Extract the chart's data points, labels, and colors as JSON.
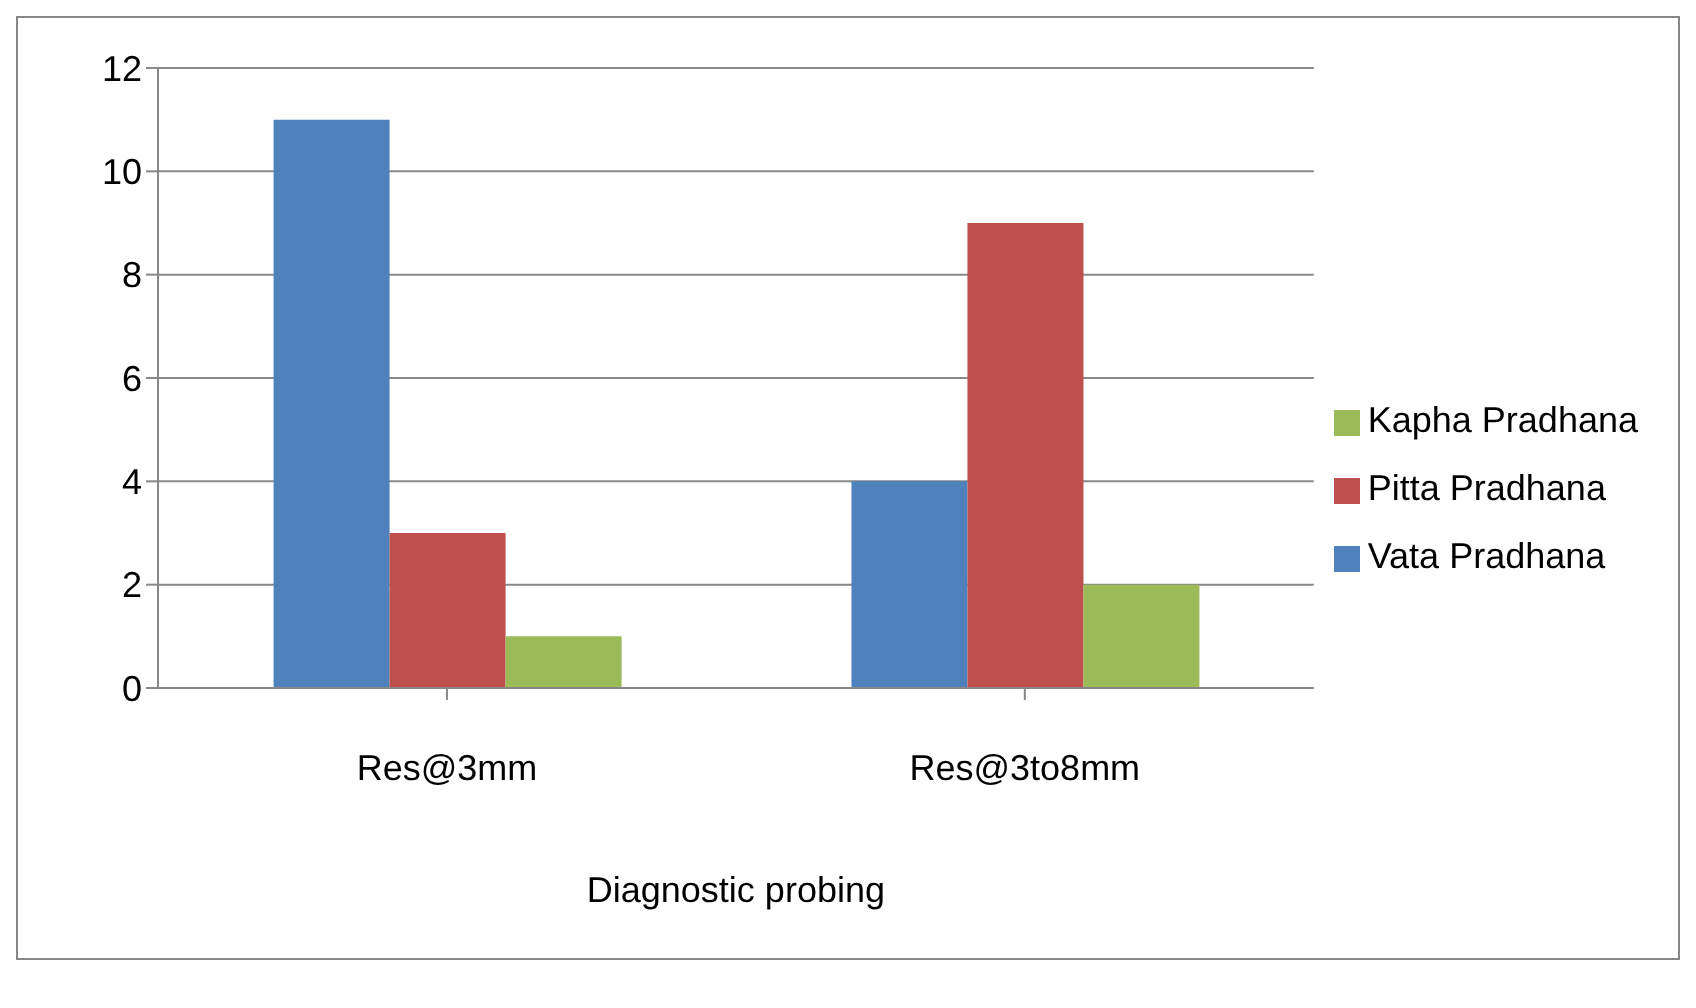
{
  "chart_data": {
    "type": "bar",
    "xlabel": "Diagnostic probing",
    "categories": [
      "Res@3mm",
      "Res@3to8mm"
    ],
    "series": [
      {
        "name": "Vata Pradhana",
        "color": "#4f81bd",
        "values": [
          11,
          4
        ]
      },
      {
        "name": "Pitta Pradhana",
        "color": "#c0504d",
        "values": [
          3,
          9
        ]
      },
      {
        "name": "Kapha Pradhana",
        "color": "#9bbb59",
        "values": [
          1,
          2
        ]
      }
    ],
    "ylim": [
      0,
      12
    ],
    "yticks": [
      0,
      2,
      4,
      6,
      8,
      10,
      12
    ],
    "grid": "y",
    "legend": "right"
  }
}
